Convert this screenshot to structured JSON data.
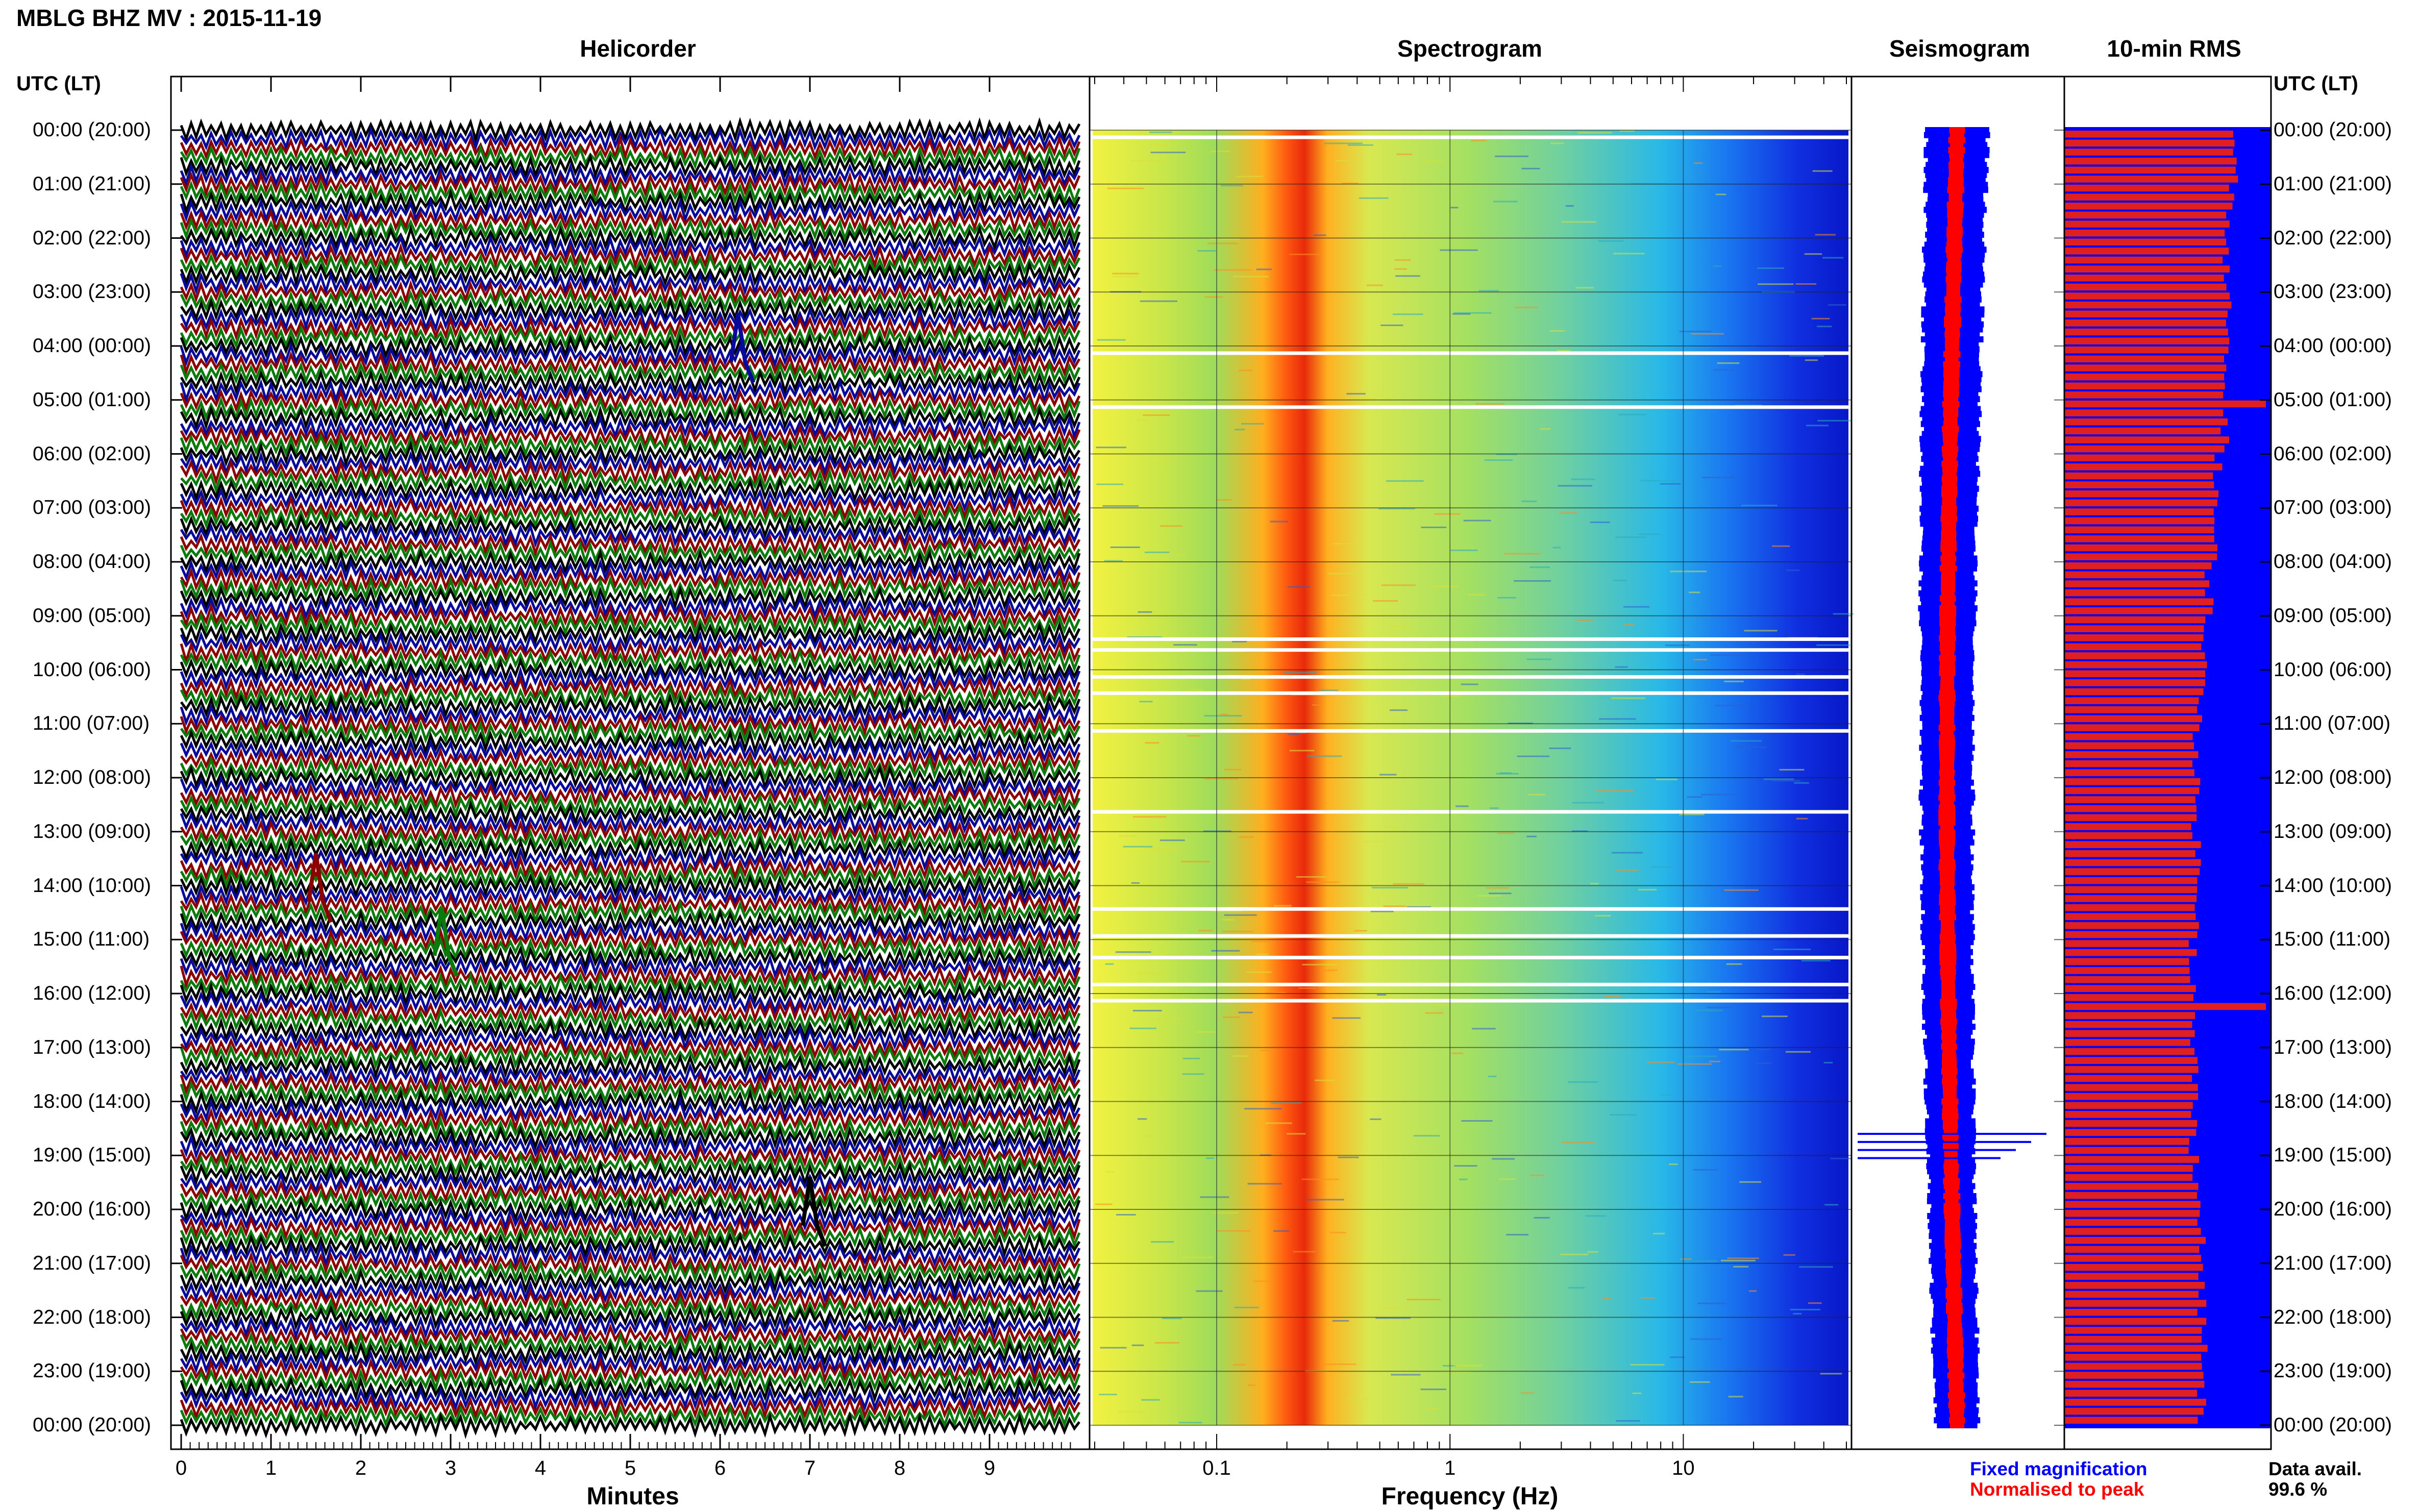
{
  "title": "MBLG BHZ MV : 2015-11-19",
  "panels": {
    "helicorder": "Helicorder",
    "spectrogram": "Spectrogram",
    "seismogram": "Seismogram",
    "rms": "10-min RMS"
  },
  "utc_header": "UTC (LT)",
  "hour_labels": [
    "00:00 (20:00)",
    "01:00 (21:00)",
    "02:00 (22:00)",
    "03:00 (23:00)",
    "04:00 (00:00)",
    "05:00 (01:00)",
    "06:00 (02:00)",
    "07:00 (03:00)",
    "08:00 (04:00)",
    "09:00 (05:00)",
    "10:00 (06:00)",
    "11:00 (07:00)",
    "12:00 (08:00)",
    "13:00 (09:00)",
    "14:00 (10:00)",
    "15:00 (11:00)",
    "16:00 (12:00)",
    "17:00 (13:00)",
    "18:00 (14:00)",
    "19:00 (15:00)",
    "20:00 (16:00)",
    "21:00 (17:00)",
    "22:00 (18:00)",
    "23:00 (19:00)",
    "00:00 (20:00)"
  ],
  "x_axes": {
    "minutes_label": "Minutes",
    "minutes_ticks": [
      "0",
      "1",
      "2",
      "3",
      "4",
      "5",
      "6",
      "7",
      "8",
      "9"
    ],
    "frequency_label": "Frequency (Hz)",
    "frequency_ticks": [
      "0.1",
      "1",
      "10"
    ]
  },
  "legend": {
    "fixed": "Fixed magnification",
    "normalised": "Normalised to peak",
    "data_avail_label": "Data avail.",
    "data_avail_value": "99.6 %"
  },
  "colors": {
    "trace_cycle": [
      "#000000",
      "#0a0a9a",
      "#8b0000",
      "#0a7a0a"
    ],
    "fixed": "#0000ff",
    "normalised": "#ff0000",
    "rms_bar": "#e02020",
    "rms_bg": "#0000ff"
  },
  "chart_data": [
    {
      "type": "line",
      "title": "Helicorder",
      "xlabel": "Minutes",
      "xlim": [
        0,
        10
      ],
      "ylabel": "UTC (LT)",
      "rows_per_hour": 6,
      "hours": 24,
      "notable_events": [
        {
          "hour": 4,
          "minute": 6.2
        },
        {
          "hour": 14,
          "minute": 1.5
        },
        {
          "hour": 15,
          "minute": 2.9
        },
        {
          "hour": 20,
          "minute": 7.0
        }
      ]
    },
    {
      "type": "heatmap",
      "title": "Spectrogram",
      "xlabel": "Frequency (Hz)",
      "x_scale": "log",
      "xlim": [
        0.03,
        50
      ],
      "peak_band_hz": [
        0.2,
        0.3
      ],
      "gap_hours": [
        0.1,
        4.1,
        5.1,
        9.4,
        9.6,
        10.1,
        10.4,
        11.1,
        12.6,
        14.4,
        14.9,
        15.3,
        15.8,
        16.1
      ]
    },
    {
      "type": "line",
      "title": "Seismogram",
      "series": [
        {
          "name": "Fixed magnification",
          "color": "#0000ff"
        },
        {
          "name": "Normalised to peak",
          "color": "#ff0000"
        }
      ]
    },
    {
      "type": "bar",
      "title": "10-min RMS",
      "orientation": "horizontal",
      "bins": 144,
      "max_value": 1.0,
      "peak_bins": [
        30,
        97
      ],
      "relative_values_by_hour": [
        0.84,
        0.82,
        0.8,
        0.81,
        0.79,
        0.8,
        0.76,
        0.74,
        0.72,
        0.7,
        0.68,
        0.66,
        0.65,
        0.66,
        0.67,
        0.64,
        0.63,
        0.65,
        0.64,
        0.66,
        0.68,
        0.68,
        0.69,
        0.68
      ]
    }
  ]
}
